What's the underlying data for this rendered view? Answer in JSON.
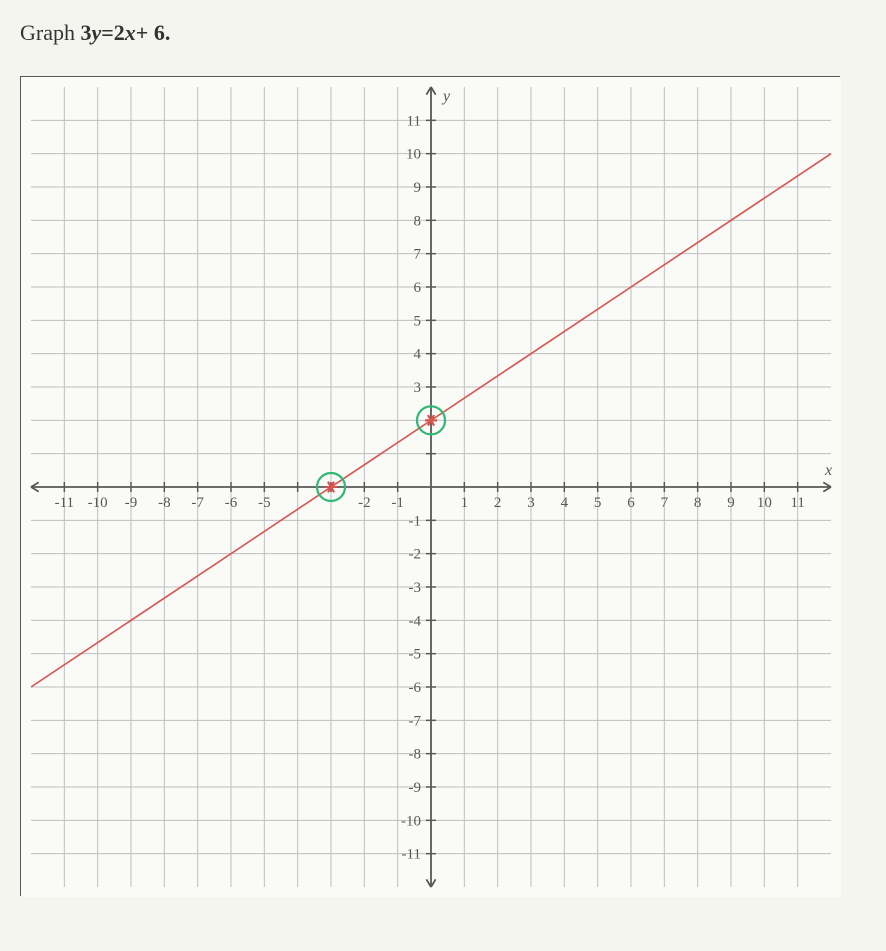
{
  "title_prefix": "Graph ",
  "equation_lhs": "3",
  "equation_var1": "y",
  "equation_eq": "=",
  "equation_rhs1": "2",
  "equation_var2": "x",
  "equation_rhs2": "+ 6.",
  "chart": {
    "type": "line",
    "xlim": [
      -12,
      12
    ],
    "ylim": [
      -12,
      12
    ],
    "xtick_min": -11,
    "xtick_max": 11,
    "ytick_min": -11,
    "ytick_max": 11,
    "tick_step": 1,
    "x_axis_label": "x",
    "y_axis_label": "y",
    "background_color": "#fafaf7",
    "grid_color": "#bfbfbf",
    "axis_color": "#585858",
    "tick_label_color": "#585858",
    "tick_fontsize": 15,
    "axis_label_fontsize": 16,
    "line": {
      "slope": 0.6667,
      "intercept": 2,
      "color": "#d9534f",
      "width": 1.6,
      "x_start": -12,
      "x_end": 12
    },
    "points": [
      {
        "x": -3,
        "y": 0,
        "circle_color": "#2fb876",
        "marker_color": "#d9534f",
        "circle_radius": 14,
        "circle_stroke": 2.2
      },
      {
        "x": 0,
        "y": 2,
        "circle_color": "#2fb876",
        "marker_color": "#d9534f",
        "circle_radius": 14,
        "circle_stroke": 2.2
      }
    ],
    "x_labels_shown": [
      -11,
      -10,
      -9,
      -8,
      -7,
      -6,
      -5,
      -2,
      -1,
      1,
      2,
      3,
      4,
      5,
      6,
      7,
      8,
      9,
      10,
      11
    ],
    "y_labels_shown": [
      11,
      10,
      9,
      8,
      7,
      6,
      5,
      4,
      3,
      -1,
      -2,
      -3,
      -4,
      -5,
      -6,
      -7,
      -8,
      -9,
      -10,
      -11
    ]
  }
}
